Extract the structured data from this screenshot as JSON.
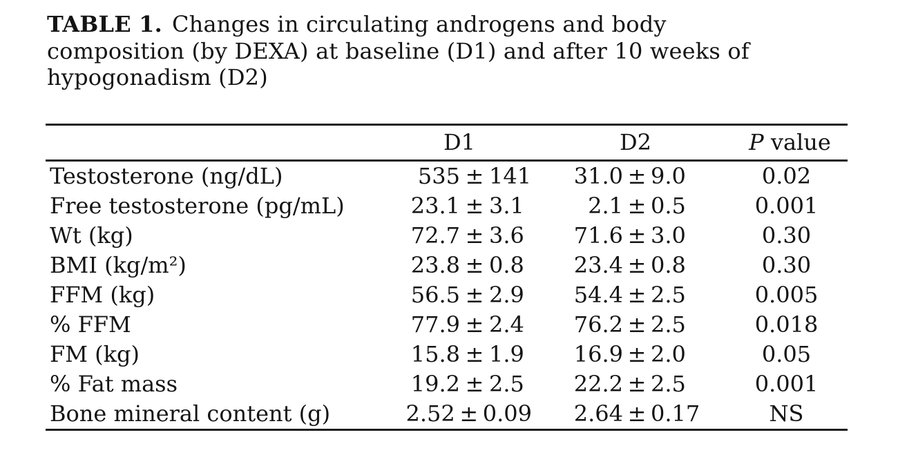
{
  "caption": {
    "label": "TABLE 1.",
    "lines": [
      "Changes in circulating androgens and body",
      "composition (by DEXA) at baseline (D1) and after 10 weeks of",
      "hypogonadism (D2)"
    ]
  },
  "header": {
    "d1": "D1",
    "d2": "D2",
    "p_italic": "P",
    "p_rest": " value"
  },
  "symbols": {
    "plus_minus": "±"
  },
  "colors": {
    "text": "#141414",
    "rule": "#1c1c1c",
    "background": "#ffffff"
  },
  "rows": [
    {
      "label": "Testosterone (ng/dL)",
      "d1": {
        "mean": "535",
        "sd": "141"
      },
      "d2": {
        "mean": "31.0",
        "sd": "9.0"
      },
      "p_value": "0.02"
    },
    {
      "label": "Free testosterone (pg/mL)",
      "d1": {
        "mean": "23.1",
        "sd": "3.1"
      },
      "d2": {
        "mean": "2.1",
        "sd": "0.5"
      },
      "p_value": "0.001"
    },
    {
      "label": "Wt (kg)",
      "d1": {
        "mean": "72.7",
        "sd": "3.6"
      },
      "d2": {
        "mean": "71.6",
        "sd": "3.0"
      },
      "p_value": "0.30"
    },
    {
      "label": "BMI (kg/m²)",
      "d1": {
        "mean": "23.8",
        "sd": "0.8"
      },
      "d2": {
        "mean": "23.4",
        "sd": "0.8"
      },
      "p_value": "0.30"
    },
    {
      "label": "FFM (kg)",
      "d1": {
        "mean": "56.5",
        "sd": "2.9"
      },
      "d2": {
        "mean": "54.4",
        "sd": "2.5"
      },
      "p_value": "0.005"
    },
    {
      "label": "% FFM",
      "d1": {
        "mean": "77.9",
        "sd": "2.4"
      },
      "d2": {
        "mean": "76.2",
        "sd": "2.5"
      },
      "p_value": "0.018"
    },
    {
      "label": "FM (kg)",
      "d1": {
        "mean": "15.8",
        "sd": "1.9"
      },
      "d2": {
        "mean": "16.9",
        "sd": "2.0"
      },
      "p_value": "0.05"
    },
    {
      "label": "% Fat mass",
      "d1": {
        "mean": "19.2",
        "sd": "2.5"
      },
      "d2": {
        "mean": "22.2",
        "sd": "2.5"
      },
      "p_value": "0.001"
    },
    {
      "label": "Bone mineral content (g)",
      "d1": {
        "mean": "2.52",
        "sd": "0.09"
      },
      "d2": {
        "mean": "2.64",
        "sd": "0.17"
      },
      "p_value": "NS"
    }
  ]
}
